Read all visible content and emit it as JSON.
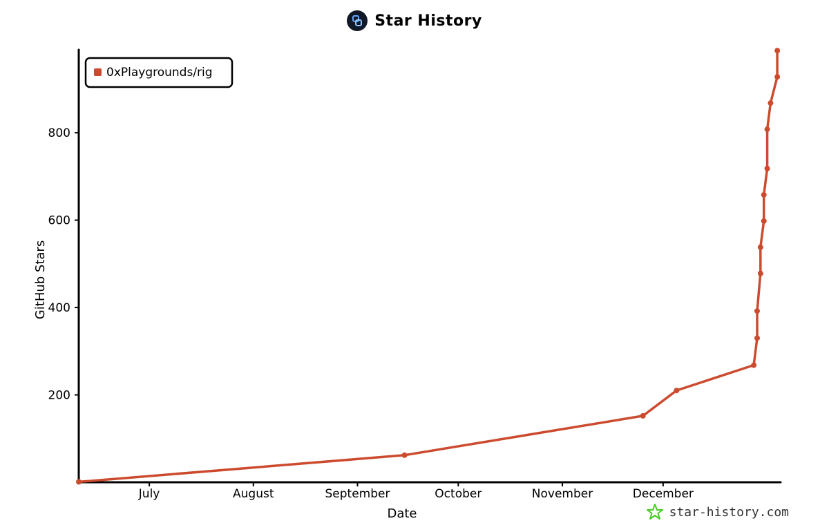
{
  "header": {
    "title": "Star History"
  },
  "watermark": {
    "text": "star-history.com",
    "icon": "star-icon",
    "color": "#44cc22"
  },
  "chart_data": {
    "type": "line",
    "title": "Star History",
    "xlabel": "Date",
    "ylabel": "GitHub Stars",
    "x_ticks": [
      "July",
      "August",
      "September",
      "October",
      "November",
      "December"
    ],
    "y_ticks": [
      200,
      400,
      600,
      800
    ],
    "ylim": [
      0,
      990
    ],
    "legend_position": "top-left",
    "grid": false,
    "series": [
      {
        "name": "0xPlaygrounds/rig",
        "color": "#cc4b2f",
        "points": [
          {
            "x": "2024-06-10",
            "y": 1
          },
          {
            "x": "2024-09-15",
            "y": 62
          },
          {
            "x": "2024-11-25",
            "y": 152
          },
          {
            "x": "2024-12-05",
            "y": 210
          },
          {
            "x": "2024-12-28",
            "y": 268
          },
          {
            "x": "2024-12-29",
            "y": 330
          },
          {
            "x": "2024-12-29",
            "y": 392
          },
          {
            "x": "2024-12-30",
            "y": 478
          },
          {
            "x": "2024-12-30",
            "y": 538
          },
          {
            "x": "2024-12-31",
            "y": 598
          },
          {
            "x": "2024-12-31",
            "y": 658
          },
          {
            "x": "2025-01-01",
            "y": 718
          },
          {
            "x": "2025-01-01",
            "y": 808
          },
          {
            "x": "2025-01-02",
            "y": 868
          },
          {
            "x": "2025-01-04",
            "y": 928
          },
          {
            "x": "2025-01-04",
            "y": 988
          }
        ]
      }
    ]
  }
}
